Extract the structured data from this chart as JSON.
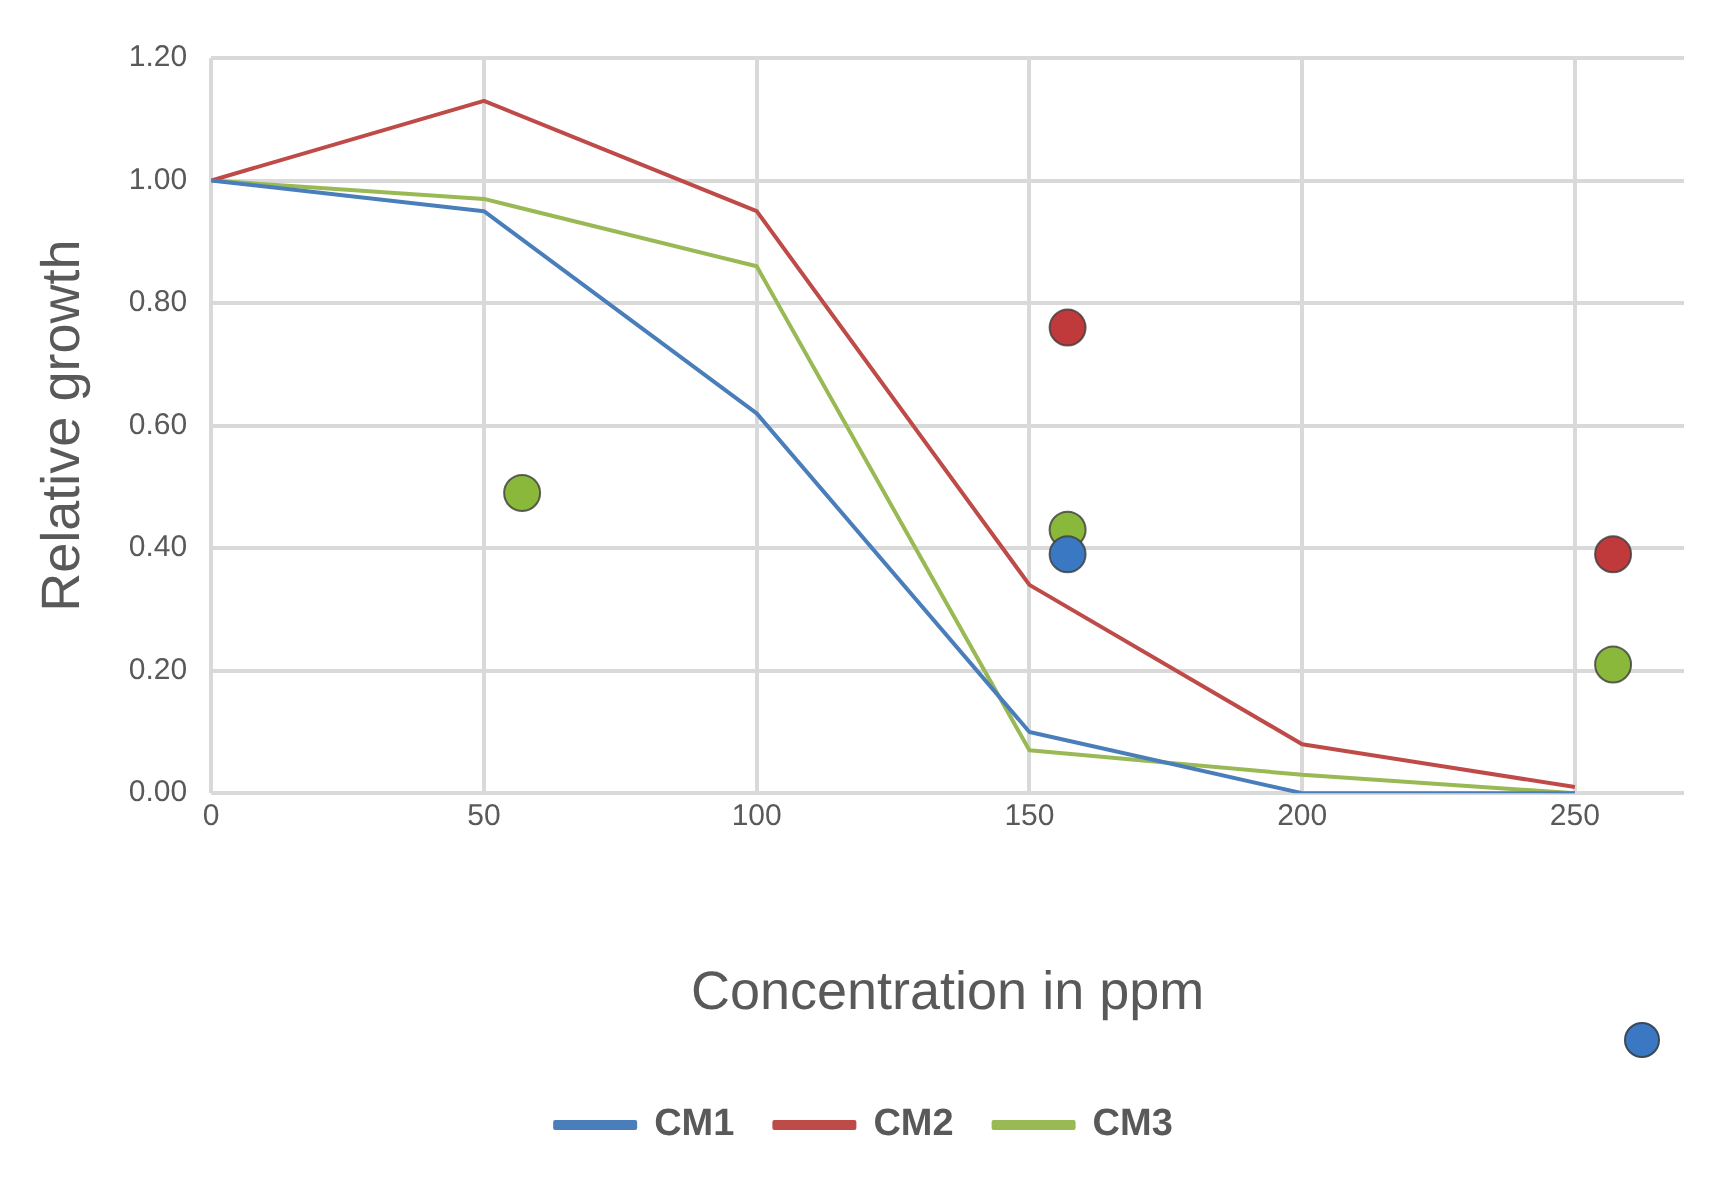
{
  "chart_data": {
    "type": "line",
    "xlabel": "Concentration in ppm",
    "ylabel": "Relative growth",
    "x": [
      0,
      50,
      100,
      150,
      200,
      250
    ],
    "series": [
      {
        "name": "CM1",
        "color": "#4a7ebb",
        "marker": "none",
        "values": [
          1.0,
          0.95,
          0.62,
          0.1,
          0.0,
          0.0
        ]
      },
      {
        "name": "CM2",
        "color": "#be4b48",
        "marker": "none",
        "values": [
          1.0,
          1.13,
          0.95,
          0.34,
          0.08,
          0.01
        ]
      },
      {
        "name": "CM3",
        "color": "#98b954",
        "marker": "none",
        "values": [
          1.0,
          0.97,
          0.86,
          0.07,
          0.03,
          0.0
        ]
      },
      {
        "type": "scatter",
        "marker": "circle",
        "color": "#3a78c4",
        "x": [
          157
        ],
        "values": [
          0.39
        ]
      },
      {
        "type": "scatter",
        "marker": "circle",
        "color": "#c0393b",
        "x": [
          157,
          257
        ],
        "values": [
          0.76,
          0.39
        ]
      },
      {
        "type": "scatter",
        "marker": "circle",
        "color": "#8ab83a",
        "x": [
          57,
          157,
          257
        ],
        "values": [
          0.49,
          0.43,
          0.21
        ]
      }
    ],
    "xlim": [
      0,
      270
    ],
    "xticks": [
      0,
      50,
      100,
      150,
      200,
      250
    ],
    "ylim": [
      0,
      1.2
    ],
    "yticks": [
      {
        "value": 0,
        "label": "0.00"
      },
      {
        "value": 0.2,
        "label": "0.20"
      },
      {
        "value": 0.4,
        "label": "0.40"
      },
      {
        "value": 0.6,
        "label": "0.60"
      },
      {
        "value": 0.8,
        "label": "0.80"
      },
      {
        "value": 1,
        "label": "1.00"
      },
      {
        "value": 1.2,
        "label": "1.20"
      }
    ],
    "grid": true,
    "legend": "bottom"
  }
}
